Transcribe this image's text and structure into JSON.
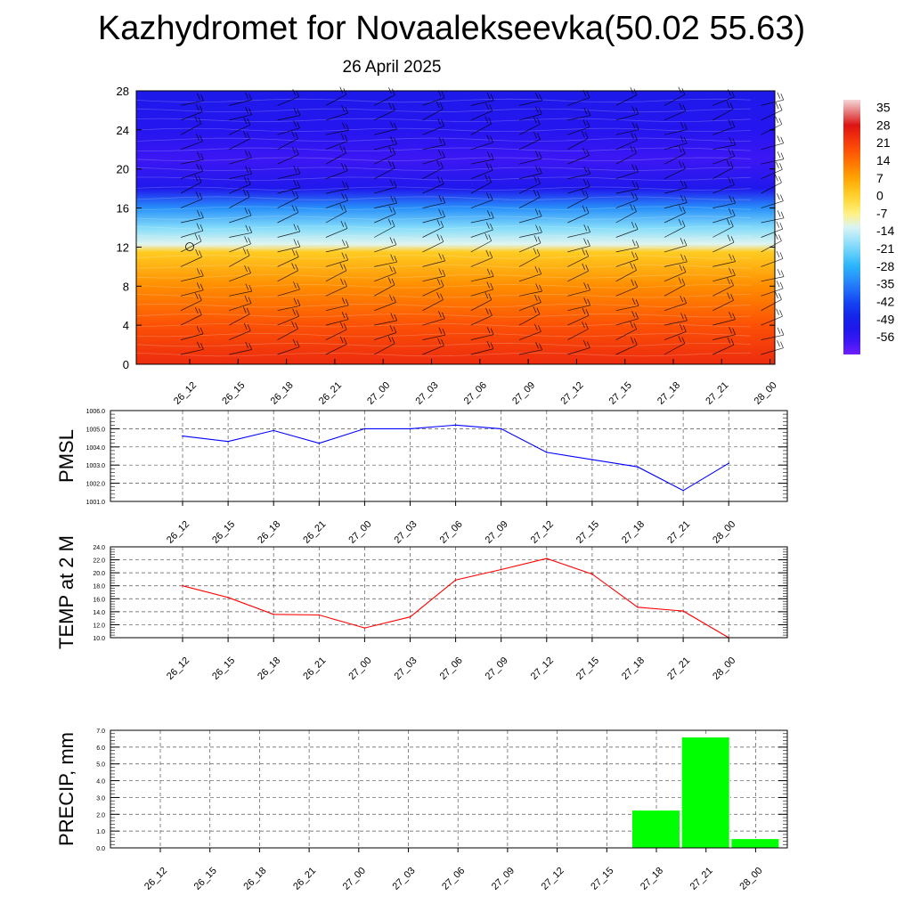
{
  "header": {
    "title": "Kazhydromet for Novaalekseevka(50.02 55.63)",
    "subtitle": "26 April 2025"
  },
  "chart_data": [
    {
      "type": "heatmap",
      "title": "",
      "x_labels": [
        "26_12",
        "26_15",
        "26_18",
        "26_21",
        "27_00",
        "27_03",
        "27_06",
        "27_09",
        "27_12",
        "27_15",
        "27_18",
        "27_21",
        "28_00"
      ],
      "y_ticks": [
        0,
        4,
        8,
        12,
        16,
        20,
        24,
        28
      ],
      "ylim": [
        0,
        28
      ],
      "colorbar": {
        "labels": [
          "35",
          "28",
          "21",
          "14",
          "7",
          "0",
          "-7",
          "-14",
          "-21",
          "-28",
          "-35",
          "-42",
          "-49",
          "-56"
        ],
        "range": [
          -63,
          38
        ]
      },
      "temperature_profile": [
        {
          "y": 0,
          "t": 24
        },
        {
          "y": 4,
          "t": 18
        },
        {
          "y": 8,
          "t": 10
        },
        {
          "y": 11.5,
          "t": 1
        },
        {
          "y": 12.3,
          "t": -12
        },
        {
          "y": 14,
          "t": -20
        },
        {
          "y": 16,
          "t": -33
        },
        {
          "y": 18,
          "t": -53
        },
        {
          "y": 21,
          "t": -58
        },
        {
          "y": 24,
          "t": -55
        },
        {
          "y": 28,
          "t": -52
        }
      ],
      "wind_barbs": true,
      "grid": false
    },
    {
      "type": "line",
      "ylabel": "PMSL",
      "xlabel": "",
      "x": [
        "26_12",
        "26_15",
        "26_18",
        "26_21",
        "27_00",
        "27_03",
        "27_06",
        "27_09",
        "27_12",
        "27_15",
        "27_18",
        "27_21",
        "28_00"
      ],
      "series": [
        {
          "values": [
            1004.6,
            1004.3,
            1004.9,
            1004.2,
            1005.0,
            1005.0,
            1005.2,
            1005.0,
            1003.7,
            1003.3,
            1002.9,
            1001.6,
            1003.1
          ],
          "color": "#0000ff"
        }
      ],
      "ylim": [
        1001.0,
        1006.0
      ],
      "y_ticks": [
        "1001.0",
        "1002.0",
        "1003.0",
        "1004.0",
        "1005.0",
        "1006.0"
      ],
      "grid": true
    },
    {
      "type": "line",
      "ylabel": "TEMP at 2 M",
      "xlabel": "",
      "x": [
        "26_12",
        "26_15",
        "26_18",
        "26_21",
        "27_00",
        "27_03",
        "27_06",
        "27_09",
        "27_12",
        "27_15",
        "27_18",
        "27_21",
        "28_00"
      ],
      "series": [
        {
          "values": [
            18.0,
            16.2,
            13.6,
            13.5,
            11.5,
            13.2,
            18.9,
            20.5,
            22.2,
            19.8,
            14.7,
            14.1,
            10.0
          ],
          "color": "#ff0000"
        }
      ],
      "ylim": [
        10.0,
        24.0
      ],
      "y_ticks": [
        "10.0",
        "12.0",
        "14.0",
        "16.0",
        "18.0",
        "20.0",
        "22.0",
        "24.0"
      ],
      "grid": true
    },
    {
      "type": "bar",
      "ylabel": "PRECIP, mm",
      "xlabel": "",
      "categories": [
        "26_12",
        "26_15",
        "26_18",
        "26_21",
        "27_00",
        "27_03",
        "27_06",
        "27_09",
        "27_12",
        "27_15",
        "27_18",
        "27_21",
        "28_00"
      ],
      "values": [
        0,
        0,
        0,
        0,
        0,
        0,
        0,
        0,
        0,
        0,
        2.25,
        6.6,
        0.55
      ],
      "color": "#00ff00",
      "ylim": [
        0.0,
        7.0
      ],
      "y_ticks": [
        "0.0",
        "1.0",
        "2.0",
        "3.0",
        "4.0",
        "5.0",
        "6.0",
        "7.0"
      ],
      "grid": true
    }
  ]
}
